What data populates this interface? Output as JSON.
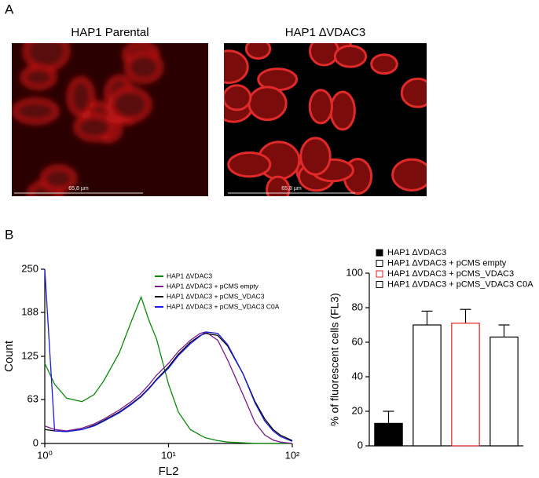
{
  "figure": {
    "panels": [
      "A",
      "B"
    ],
    "images": [
      {
        "title": "HAP1 Parental",
        "scale_bar": "65,8 µm"
      },
      {
        "title": "HAP1 ∆VDAC3",
        "scale_bar": "65,8 µm"
      }
    ]
  },
  "chart_data": [
    {
      "type": "line",
      "x_label": "FL2",
      "y_label": "Count",
      "log_x": true,
      "xlim": [
        1,
        100
      ],
      "xticks": [
        {
          "value": 1,
          "label": "10⁰"
        },
        {
          "value": 10,
          "label": "10¹"
        },
        {
          "value": 100,
          "label": "10²"
        }
      ],
      "ylim": [
        0,
        250
      ],
      "yticks": [
        0,
        63,
        125,
        188,
        250
      ],
      "x": [
        1,
        1.2,
        1.5,
        2,
        2.5,
        3,
        4,
        5,
        6,
        7,
        8,
        10,
        12,
        15,
        18,
        20,
        25,
        30,
        40,
        50,
        60,
        70,
        80,
        100
      ],
      "series": [
        {
          "name": "HAP1 ∆VDAC3",
          "color": "#0a8a0a",
          "values": [
            115,
            85,
            65,
            60,
            70,
            90,
            130,
            175,
            210,
            175,
            150,
            85,
            45,
            20,
            12,
            8,
            4,
            2,
            1,
            0,
            0,
            0,
            0,
            0
          ]
        },
        {
          "name": "HAP1 ∆VDAC3 + pCMS empty",
          "color": "#7a1a8a",
          "values": [
            25,
            20,
            18,
            22,
            28,
            35,
            48,
            60,
            72,
            85,
            98,
            115,
            132,
            148,
            158,
            160,
            148,
            120,
            70,
            30,
            12,
            5,
            2,
            0
          ]
        },
        {
          "name": "HAP1 ∆VDAC3 + pCMS_VDAC3",
          "color": "#000000",
          "values": [
            20,
            18,
            17,
            20,
            26,
            33,
            45,
            57,
            68,
            80,
            92,
            110,
            128,
            145,
            155,
            158,
            155,
            140,
            100,
            60,
            35,
            20,
            12,
            4
          ]
        },
        {
          "name": "HAP1 ∆VDAC3 + pCMS_VDAC3 C0A",
          "color": "#1a1ae0",
          "values": [
            250,
            18,
            17,
            20,
            25,
            32,
            44,
            56,
            67,
            79,
            91,
            108,
            126,
            143,
            154,
            160,
            158,
            142,
            100,
            58,
            32,
            18,
            10,
            3
          ]
        }
      ]
    },
    {
      "type": "bar",
      "y_label": "% of fluorescent cells (FL3)",
      "ylim": [
        0,
        100
      ],
      "yticks": [
        0,
        20,
        40,
        60,
        80,
        100
      ],
      "categories": [
        "HAP1 ∆VDAC3",
        "HAP1 ∆VDAC3 + pCMS empty",
        "HAP1 ∆VDAC3 + pCMS_VDAC3",
        "HAP1 ∆VDAC3 + pCMS_VDAC3 C0A"
      ],
      "values": [
        13,
        70,
        71,
        63
      ],
      "errors": [
        7,
        8,
        8,
        7
      ],
      "colors": [
        "#000000",
        "#ffffff",
        "#ffffff",
        "#ffffff"
      ],
      "edge_colors": [
        "#000000",
        "#000000",
        "#e02020",
        "#000000"
      ]
    }
  ]
}
